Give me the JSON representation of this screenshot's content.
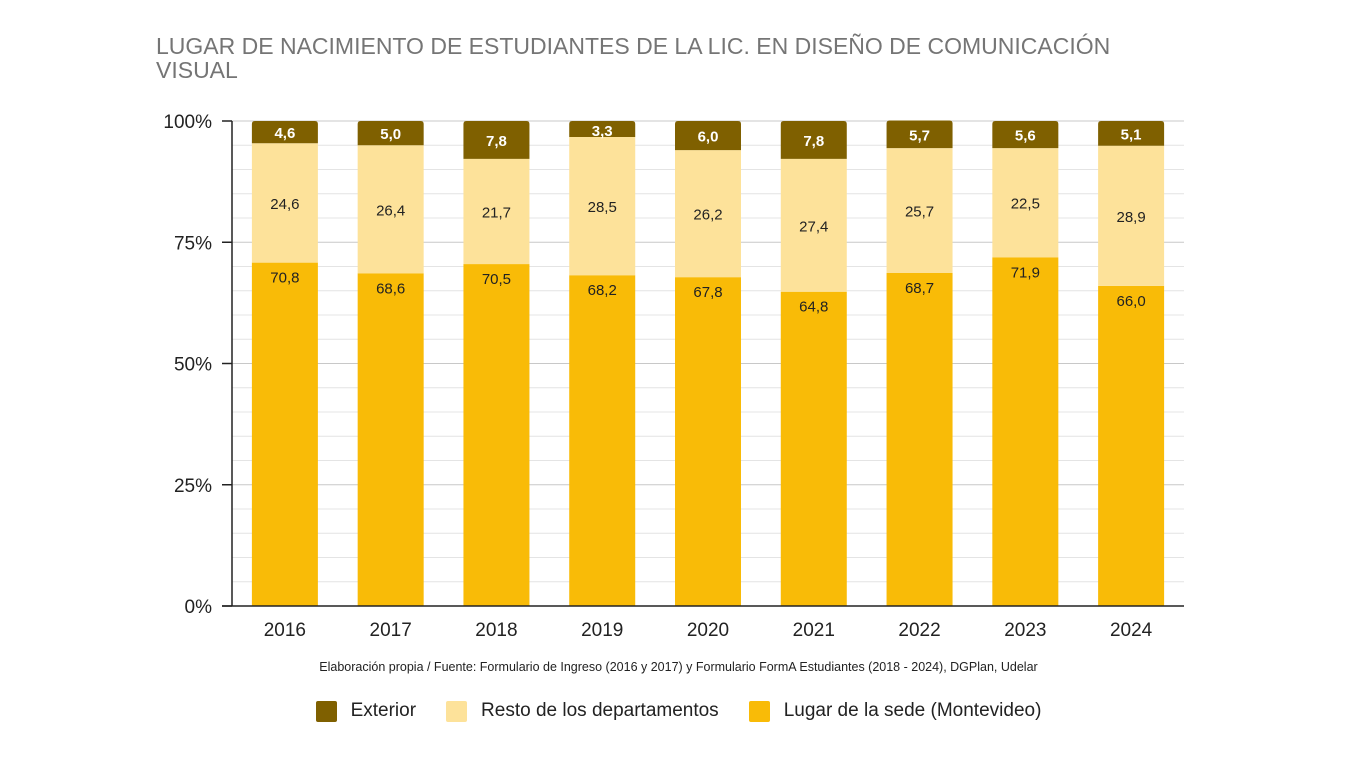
{
  "chart_data": {
    "type": "bar",
    "stacked": true,
    "title": "LUGAR DE NACIMIENTO DE ESTUDIANTES DE LA LIC. EN DISEÑO DE COMUNICACIÓN VISUAL",
    "source": "Elaboración propia / Fuente: Formulario de Ingreso (2016 y 2017) y Formulario FormA Estudiantes (2018 - 2024), DGPlan, Udelar",
    "categories": [
      "2016",
      "2017",
      "2018",
      "2019",
      "2020",
      "2021",
      "2022",
      "2023",
      "2024"
    ],
    "y_ticks": [
      "0%",
      "25%",
      "50%",
      "75%",
      "100%"
    ],
    "ylim": [
      0,
      100
    ],
    "grid": true,
    "legend_position": "bottom",
    "series": [
      {
        "name": "Lugar de la sede (Montevideo)",
        "color": "#F9BB07",
        "values": [
          70.8,
          68.6,
          70.5,
          68.2,
          67.8,
          64.8,
          68.7,
          71.9,
          66.0
        ],
        "labels": [
          "70,8",
          "68,6",
          "70,5",
          "68,2",
          "67,8",
          "64,8",
          "68,7",
          "71,9",
          "66,0"
        ]
      },
      {
        "name": "Resto de los departamentos",
        "color": "#FDE29A",
        "values": [
          24.6,
          26.4,
          21.7,
          28.5,
          26.2,
          27.4,
          25.7,
          22.5,
          28.9
        ],
        "labels": [
          "24,6",
          "26,4",
          "21,7",
          "28,5",
          "26,2",
          "27,4",
          "25,7",
          "22,5",
          "28,9"
        ]
      },
      {
        "name": "Exterior",
        "color": "#7F6000",
        "values": [
          4.6,
          5.0,
          7.8,
          3.3,
          6.0,
          7.8,
          5.7,
          5.6,
          5.1
        ],
        "labels": [
          "4,6",
          "5,0",
          "7,8",
          "3,3",
          "6,0",
          "7,8",
          "5,7",
          "5,6",
          "5,1"
        ]
      }
    ],
    "legend_order": [
      "Exterior",
      "Resto de los departamentos",
      "Lugar de la sede (Montevideo)"
    ]
  }
}
